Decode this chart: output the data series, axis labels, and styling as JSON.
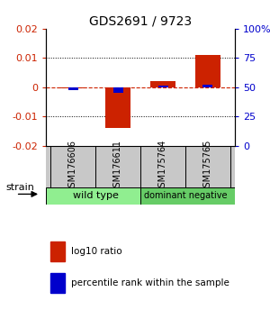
{
  "title": "GDS2691 / 9723",
  "samples": [
    "GSM176606",
    "GSM176611",
    "GSM175764",
    "GSM175765"
  ],
  "log10_ratio": [
    -0.0005,
    -0.014,
    0.002,
    0.011
  ],
  "percentile_rank": [
    47.5,
    45.5,
    51.5,
    52.5
  ],
  "ylim_left": [
    -0.02,
    0.02
  ],
  "ylim_right": [
    0,
    100
  ],
  "bar_width": 0.55,
  "blue_bar_width": 0.22,
  "red_color": "#CC2200",
  "blue_color": "#0000CC",
  "bg_color": "#FFFFFF",
  "plot_bg": "#FFFFFF",
  "sample_bg": "#C8C8C8",
  "group_bg_wt": "#90EE90",
  "group_bg_dn": "#66CC66",
  "label_red": "log10 ratio",
  "label_blue": "percentile rank within the sample",
  "group_label_fontsize": 8,
  "sample_label_fontsize": 7,
  "title_fontsize": 10,
  "tick_fontsize": 8
}
